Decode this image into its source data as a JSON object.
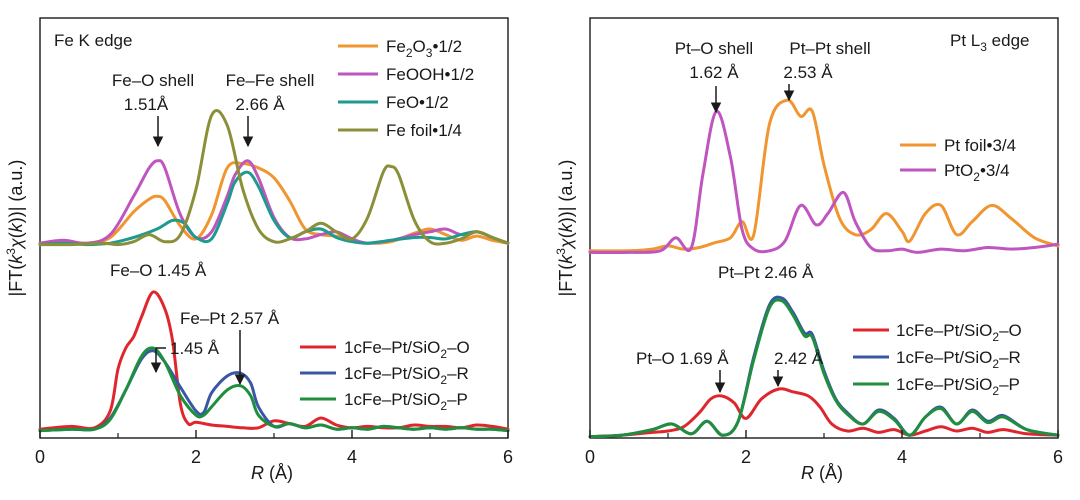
{
  "colors": {
    "orange": "#f0952f",
    "magenta": "#bf55bf",
    "teal": "#1f9a8f",
    "olive": "#8b8f38",
    "red": "#e0262d",
    "blue": "#3a57a5",
    "green": "#1f8f3e",
    "axis": "#1a1a1a"
  },
  "chart_data": [
    {
      "type": "line",
      "title": "Fe K edge",
      "xlabel": "R (Å)",
      "ylabel": "|FT(k³χ(k))| (a.u.)",
      "xlim": [
        0,
        6
      ],
      "x_ticks": [
        "0",
        "2",
        "4",
        "6"
      ],
      "grid": false,
      "legend_top": [
        "Fe2O3•1/2",
        "FeOOH•1/2",
        "FeO•1/2",
        "Fe foil•1/4"
      ],
      "legend_bottom": [
        "1cFe–Pt/SiO2–O",
        "1cFe–Pt/SiO2–R",
        "1cFe–Pt/SiO2–P"
      ],
      "annotations": {
        "feo_shell": [
          "Fe–O shell",
          "1.51Å"
        ],
        "fefe_shell": [
          "Fe–Fe shell",
          "2.66 Å"
        ],
        "feo_sample": "Fe–O 1.45 Å",
        "fept": "Fe–Pt 2.57 Å",
        "feo_sample2": "1.45 Å"
      },
      "series": [
        {
          "name": "Fe2O3•1/2",
          "group": "top",
          "color": "orange",
          "x": [
            0,
            0.3,
            0.6,
            0.9,
            1.2,
            1.4,
            1.5,
            1.6,
            1.8,
            2.0,
            2.2,
            2.4,
            2.6,
            2.8,
            3.0,
            3.2,
            3.4,
            3.6,
            3.8,
            4.0,
            4.2,
            4.5,
            4.8,
            5.0,
            5.2,
            5.4,
            5.6,
            5.8,
            6.0
          ],
          "y": [
            0.02,
            0.03,
            0.02,
            0.06,
            0.24,
            0.33,
            0.35,
            0.32,
            0.14,
            0.05,
            0.22,
            0.55,
            0.58,
            0.55,
            0.48,
            0.32,
            0.12,
            0.08,
            0.07,
            0.04,
            0.02,
            0.03,
            0.09,
            0.12,
            0.08,
            0.04,
            0.07,
            0.04,
            0.02
          ]
        },
        {
          "name": "FeOOH•1/2",
          "group": "top",
          "color": "magenta",
          "x": [
            0,
            0.3,
            0.6,
            0.9,
            1.2,
            1.4,
            1.51,
            1.6,
            1.8,
            2.0,
            2.2,
            2.4,
            2.5,
            2.66,
            2.8,
            3.0,
            3.2,
            3.4,
            3.6,
            3.8,
            4.0,
            4.2,
            4.5,
            4.8,
            5.0,
            5.2,
            5.4,
            5.6,
            5.8,
            6.0
          ],
          "y": [
            0.02,
            0.04,
            0.02,
            0.08,
            0.35,
            0.55,
            0.6,
            0.55,
            0.22,
            0.06,
            0.1,
            0.35,
            0.5,
            0.6,
            0.48,
            0.2,
            0.06,
            0.05,
            0.08,
            0.1,
            0.05,
            0.02,
            0.04,
            0.08,
            0.1,
            0.12,
            0.08,
            0.1,
            0.06,
            0.02
          ]
        },
        {
          "name": "FeO•1/2",
          "group": "top",
          "color": "teal",
          "x": [
            0,
            0.3,
            0.6,
            0.9,
            1.2,
            1.5,
            1.7,
            1.85,
            2.0,
            2.2,
            2.4,
            2.5,
            2.66,
            2.8,
            3.0,
            3.2,
            3.4,
            3.6,
            3.8,
            4.0,
            4.2,
            4.5,
            4.8,
            5.0,
            5.2,
            5.4,
            5.6,
            5.8,
            6.0
          ],
          "y": [
            0.01,
            0.02,
            0.01,
            0.02,
            0.06,
            0.12,
            0.18,
            0.16,
            0.06,
            0.05,
            0.3,
            0.45,
            0.52,
            0.42,
            0.18,
            0.06,
            0.1,
            0.12,
            0.06,
            0.03,
            0.02,
            0.04,
            0.06,
            0.06,
            0.05,
            0.08,
            0.1,
            0.06,
            0.02
          ]
        },
        {
          "name": "Fe foil•1/4",
          "group": "top",
          "color": "olive",
          "x": [
            0,
            0.4,
            0.8,
            1.0,
            1.2,
            1.4,
            1.6,
            1.8,
            2.0,
            2.2,
            2.4,
            2.6,
            2.8,
            3.0,
            3.2,
            3.4,
            3.6,
            3.8,
            4.0,
            4.2,
            4.4,
            4.5,
            4.6,
            4.8,
            5.0,
            5.2,
            5.4,
            5.6,
            5.8,
            6.0
          ],
          "y": [
            0.01,
            0.01,
            0.02,
            0.01,
            0.03,
            0.08,
            0.03,
            0.08,
            0.4,
            0.92,
            0.85,
            0.4,
            0.12,
            0.03,
            0.05,
            0.1,
            0.16,
            0.1,
            0.05,
            0.2,
            0.52,
            0.56,
            0.5,
            0.18,
            0.03,
            0.02,
            0.05,
            0.1,
            0.06,
            0.02
          ]
        },
        {
          "name": "1cFe–Pt/SiO2–O",
          "group": "bottom",
          "color": "red",
          "x": [
            0,
            0.4,
            0.7,
            0.9,
            1.0,
            1.1,
            1.2,
            1.3,
            1.45,
            1.6,
            1.7,
            1.8,
            1.9,
            2.0,
            2.2,
            2.4,
            2.6,
            2.8,
            3.0,
            3.2,
            3.4,
            3.6,
            3.8,
            4.0,
            4.2,
            4.4,
            4.6,
            4.8,
            5.0,
            5.2,
            5.4,
            5.6,
            5.8,
            6.0
          ],
          "y": [
            0.02,
            0.04,
            0.03,
            0.15,
            0.45,
            0.6,
            0.68,
            0.82,
            1.0,
            0.88,
            0.65,
            0.2,
            0.06,
            0.07,
            0.05,
            0.04,
            0.03,
            0.03,
            0.08,
            0.06,
            0.04,
            0.1,
            0.05,
            0.03,
            0.04,
            0.03,
            0.03,
            0.05,
            0.04,
            0.04,
            0.03,
            0.05,
            0.04,
            0.02
          ]
        },
        {
          "name": "1cFe–Pt/SiO2–R",
          "group": "bottom",
          "color": "blue",
          "x": [
            0,
            0.4,
            0.7,
            0.9,
            1.1,
            1.3,
            1.45,
            1.6,
            1.8,
            2.0,
            2.1,
            2.2,
            2.4,
            2.57,
            2.7,
            2.8,
            3.0,
            3.2,
            3.4,
            3.6,
            3.8,
            4.0,
            4.2,
            4.4,
            4.6,
            4.8,
            5.0,
            5.2,
            5.4,
            5.6,
            5.8,
            6.0
          ],
          "y": [
            0.01,
            0.02,
            0.02,
            0.1,
            0.3,
            0.52,
            0.58,
            0.5,
            0.32,
            0.15,
            0.14,
            0.28,
            0.4,
            0.42,
            0.35,
            0.18,
            0.04,
            0.06,
            0.03,
            0.05,
            0.02,
            0.03,
            0.02,
            0.04,
            0.03,
            0.02,
            0.03,
            0.02,
            0.03,
            0.02,
            0.02,
            0.01
          ]
        },
        {
          "name": "1cFe–Pt/SiO2–P",
          "group": "bottom",
          "color": "green",
          "x": [
            0,
            0.4,
            0.7,
            0.9,
            1.1,
            1.3,
            1.45,
            1.6,
            1.8,
            2.0,
            2.1,
            2.2,
            2.4,
            2.57,
            2.7,
            2.8,
            3.0,
            3.2,
            3.4,
            3.6,
            3.8,
            4.0,
            4.2,
            4.4,
            4.6,
            4.8,
            5.0,
            5.2,
            5.4,
            5.6,
            5.8,
            6.0
          ],
          "y": [
            0.01,
            0.02,
            0.02,
            0.09,
            0.3,
            0.54,
            0.6,
            0.5,
            0.26,
            0.12,
            0.12,
            0.18,
            0.3,
            0.33,
            0.26,
            0.12,
            0.04,
            0.06,
            0.03,
            0.05,
            0.02,
            0.03,
            0.02,
            0.04,
            0.03,
            0.02,
            0.03,
            0.02,
            0.03,
            0.02,
            0.02,
            0.01
          ]
        }
      ]
    },
    {
      "type": "line",
      "title": "Pt L3 edge",
      "xlabel": "R (Å)",
      "ylabel": "|FT(k³χ(k))| (a.u.)",
      "xlim": [
        0,
        6
      ],
      "x_ticks": [
        "0",
        "2",
        "4",
        "6"
      ],
      "grid": false,
      "legend_top": [
        "Pt foil•3/4",
        "PtO2•3/4"
      ],
      "legend_bottom": [
        "1cFe–Pt/SiO2–O",
        "1cFe–Pt/SiO2–R",
        "1cFe–Pt/SiO2–P"
      ],
      "annotations": {
        "pto_shell": [
          "Pt–O shell",
          "1.62 Å"
        ],
        "ptpt_shell": [
          "Pt–Pt shell",
          "2.53 Å"
        ],
        "ptpt_sample": "Pt–Pt 2.46 Å",
        "pto_sample": "Pt–O 1.69 Å",
        "ptpt_sample2": "2.42 Å"
      },
      "series": [
        {
          "name": "Pt foil•3/4",
          "group": "top",
          "color": "orange",
          "x": [
            0,
            0.5,
            0.8,
            1.0,
            1.2,
            1.4,
            1.6,
            1.8,
            1.95,
            2.1,
            2.3,
            2.53,
            2.7,
            2.85,
            3.0,
            3.2,
            3.4,
            3.6,
            3.8,
            4.0,
            4.1,
            4.3,
            4.5,
            4.7,
            4.9,
            5.15,
            5.4,
            5.7,
            6.0
          ],
          "y": [
            0.02,
            0.02,
            0.03,
            0.05,
            0.03,
            0.04,
            0.07,
            0.1,
            0.2,
            0.12,
            0.8,
            0.95,
            0.85,
            0.88,
            0.55,
            0.22,
            0.12,
            0.15,
            0.25,
            0.14,
            0.08,
            0.25,
            0.3,
            0.12,
            0.2,
            0.3,
            0.22,
            0.1,
            0.05
          ]
        },
        {
          "name": "PtO2•3/4",
          "group": "top",
          "color": "magenta",
          "x": [
            0,
            0.5,
            0.9,
            1.1,
            1.3,
            1.45,
            1.62,
            1.8,
            1.95,
            2.1,
            2.3,
            2.5,
            2.7,
            2.9,
            3.05,
            3.25,
            3.4,
            3.6,
            3.8,
            4.0,
            4.2,
            4.5,
            4.8,
            5.1,
            5.4,
            5.7,
            6.0
          ],
          "y": [
            0.01,
            0.01,
            0.02,
            0.1,
            0.04,
            0.5,
            0.88,
            0.6,
            0.15,
            0.03,
            0.02,
            0.08,
            0.3,
            0.18,
            0.25,
            0.38,
            0.2,
            0.04,
            0.02,
            0.03,
            0.01,
            0.03,
            0.02,
            0.04,
            0.03,
            0.04,
            0.06
          ]
        },
        {
          "name": "1cFe–Pt/SiO2–O",
          "group": "bottom",
          "color": "red",
          "x": [
            0,
            0.4,
            0.8,
            1.0,
            1.2,
            1.4,
            1.55,
            1.69,
            1.85,
            2.0,
            2.2,
            2.42,
            2.6,
            2.8,
            2.95,
            3.1,
            3.3,
            3.5,
            3.7,
            3.9,
            4.1,
            4.3,
            4.5,
            4.7,
            4.9,
            5.1,
            5.3,
            5.6,
            6.0
          ],
          "y": [
            0.01,
            0.02,
            0.04,
            0.05,
            0.08,
            0.18,
            0.28,
            0.3,
            0.25,
            0.14,
            0.28,
            0.35,
            0.33,
            0.3,
            0.22,
            0.1,
            0.05,
            0.07,
            0.04,
            0.06,
            0.02,
            0.05,
            0.08,
            0.05,
            0.07,
            0.04,
            0.06,
            0.03,
            0.02
          ]
        },
        {
          "name": "1cFe–Pt/SiO2–R",
          "group": "bottom",
          "color": "blue",
          "x": [
            0,
            0.4,
            0.8,
            1.05,
            1.3,
            1.5,
            1.7,
            1.9,
            2.1,
            2.3,
            2.46,
            2.6,
            2.75,
            2.85,
            3.0,
            3.15,
            3.3,
            3.5,
            3.7,
            3.9,
            4.1,
            4.3,
            4.5,
            4.7,
            4.9,
            5.1,
            5.3,
            5.6,
            6.0
          ],
          "y": [
            0.01,
            0.02,
            0.06,
            0.1,
            0.03,
            0.12,
            0.02,
            0.12,
            0.58,
            0.95,
            1.0,
            0.9,
            0.75,
            0.74,
            0.48,
            0.28,
            0.18,
            0.1,
            0.2,
            0.14,
            0.02,
            0.15,
            0.22,
            0.1,
            0.2,
            0.12,
            0.16,
            0.06,
            0.02
          ]
        },
        {
          "name": "1cFe–Pt/SiO2–P",
          "group": "bottom",
          "color": "green",
          "x": [
            0,
            0.4,
            0.8,
            1.05,
            1.3,
            1.5,
            1.7,
            1.9,
            2.1,
            2.3,
            2.46,
            2.6,
            2.75,
            2.85,
            3.0,
            3.15,
            3.3,
            3.5,
            3.7,
            3.9,
            4.1,
            4.3,
            4.5,
            4.7,
            4.9,
            5.1,
            5.3,
            5.6,
            6.0
          ],
          "y": [
            0.01,
            0.02,
            0.06,
            0.1,
            0.03,
            0.12,
            0.02,
            0.12,
            0.56,
            0.93,
            0.98,
            0.88,
            0.73,
            0.72,
            0.46,
            0.27,
            0.17,
            0.1,
            0.19,
            0.13,
            0.02,
            0.15,
            0.21,
            0.1,
            0.19,
            0.11,
            0.15,
            0.06,
            0.02
          ]
        }
      ]
    }
  ]
}
